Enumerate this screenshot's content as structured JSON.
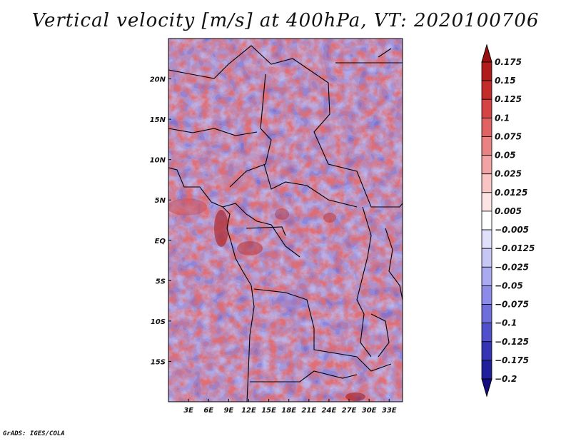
{
  "chart_data": {
    "type": "heatmap",
    "title": "Vertical velocity [m/s] at 400hPa, VT: 2020100706",
    "variable": "Vertical velocity",
    "units": "m/s",
    "level": "400hPa",
    "valid_time": "2020100706",
    "x_range": [
      0,
      35
    ],
    "y_range": [
      -20,
      25
    ],
    "x_ticks": [
      {
        "value": 3,
        "label": "3E"
      },
      {
        "value": 6,
        "label": "6E"
      },
      {
        "value": 9,
        "label": "9E"
      },
      {
        "value": 12,
        "label": "12E"
      },
      {
        "value": 15,
        "label": "15E"
      },
      {
        "value": 18,
        "label": "18E"
      },
      {
        "value": 21,
        "label": "21E"
      },
      {
        "value": 24,
        "label": "24E"
      },
      {
        "value": 27,
        "label": "27E"
      },
      {
        "value": 30,
        "label": "30E"
      },
      {
        "value": 33,
        "label": "33E"
      }
    ],
    "y_ticks": [
      {
        "value": 20,
        "label": "20N"
      },
      {
        "value": 15,
        "label": "15N"
      },
      {
        "value": 10,
        "label": "10N"
      },
      {
        "value": 5,
        "label": "5N"
      },
      {
        "value": 0,
        "label": "EQ"
      },
      {
        "value": -5,
        "label": "5S"
      },
      {
        "value": -10,
        "label": "10S"
      },
      {
        "value": -15,
        "label": "15S"
      }
    ],
    "colorbar": {
      "labels": [
        "0.175",
        "0.15",
        "0.125",
        "0.1",
        "0.075",
        "0.05",
        "0.025",
        "0.0125",
        "0.005",
        "−0.005",
        "−0.0125",
        "−0.025",
        "−0.05",
        "−0.075",
        "−0.1",
        "−0.125",
        "−0.175",
        "−0.2"
      ],
      "colors": [
        "#9a1010",
        "#b01c1c",
        "#c42c2c",
        "#d44444",
        "#e06262",
        "#e98383",
        "#f2a3a3",
        "#f8c4c4",
        "#fde4e4",
        "#ffffff",
        "#e0e0fb",
        "#c7c7f6",
        "#aaaaf0",
        "#8c8ce8",
        "#6e6edd",
        "#5050cc",
        "#3434b4",
        "#201e9a",
        "#140c80"
      ]
    }
  },
  "footer": {
    "credit": "GrADS: IGES/COLA"
  }
}
